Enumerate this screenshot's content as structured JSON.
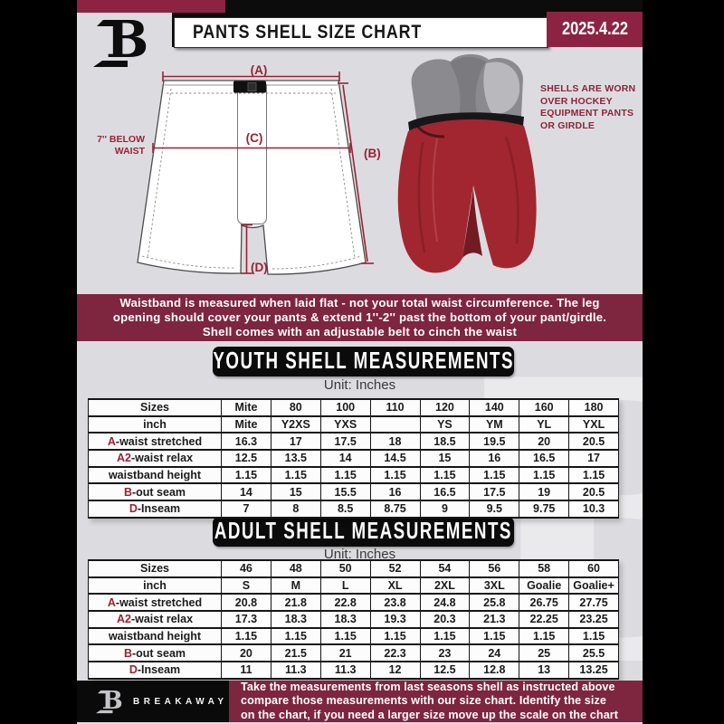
{
  "header": {
    "title": "PANTS SHELL SIZE CHART",
    "date": "2025.4.22"
  },
  "diagram": {
    "label_a": "(A)",
    "label_b": "(B)",
    "label_c": "(C)",
    "label_d": "(D)",
    "below_waist": "7'' BELOW\nWAIST"
  },
  "photo_caption": "SHELLS ARE WORN\nOVER HOCKEY\nEQUIPMENT PANTS\nOR GIRDLE",
  "notice": "Waistband is measured when laid flat - not your total waist circumference. The leg\nopening should cover your pants & extend 1''-2'' past the bottom of your pant/girdle.\nShell comes with an adjustable belt to cinch the waist",
  "youth": {
    "heading": "YOUTH SHELL MEASUREMENTS",
    "unit_label": "Unit: Inches",
    "rows": [
      {
        "prefix": "",
        "label": "Sizes",
        "values": [
          "Mite",
          "80",
          "100",
          "110",
          "120",
          "140",
          "160",
          "180"
        ]
      },
      {
        "prefix": "",
        "label": "inch",
        "values": [
          "Mite",
          "Y2XS",
          "YXS",
          "",
          "YS",
          "YM",
          "YL",
          "YXL"
        ]
      },
      {
        "prefix": "A",
        "label": "-waist stretched",
        "values": [
          "16.3",
          "17",
          "17.5",
          "18",
          "18.5",
          "19.5",
          "20",
          "20.5"
        ]
      },
      {
        "prefix": "A2",
        "label": "-waist relax",
        "values": [
          "12.5",
          "13.5",
          "14",
          "14.5",
          "15",
          "16",
          "16.5",
          "17"
        ]
      },
      {
        "prefix": "",
        "label": "waistband height",
        "values": [
          "1.15",
          "1.15",
          "1.15",
          "1.15",
          "1.15",
          "1.15",
          "1.15",
          "1.15"
        ]
      },
      {
        "prefix": "B",
        "label": "-out seam",
        "values": [
          "14",
          "15",
          "15.5",
          "16",
          "16.5",
          "17.5",
          "19",
          "20.5"
        ]
      },
      {
        "prefix": "D",
        "label": "-Inseam",
        "values": [
          "7",
          "8",
          "8.5",
          "8.75",
          "9",
          "9.5",
          "9.75",
          "10.3"
        ]
      }
    ]
  },
  "adult": {
    "heading": "ADULT SHELL MEASUREMENTS",
    "unit_label": "Unit: Inches",
    "rows": [
      {
        "prefix": "",
        "label": "Sizes",
        "values": [
          "46",
          "48",
          "50",
          "52",
          "54",
          "56",
          "58",
          "60"
        ]
      },
      {
        "prefix": "",
        "label": "inch",
        "values": [
          "S",
          "M",
          "L",
          "XL",
          "2XL",
          "3XL",
          "Goalie",
          "Goalie+"
        ]
      },
      {
        "prefix": "A",
        "label": "-waist stretched",
        "values": [
          "20.8",
          "21.8",
          "22.8",
          "23.8",
          "24.8",
          "25.8",
          "26.75",
          "27.75"
        ]
      },
      {
        "prefix": "A2",
        "label": "-waist relax",
        "values": [
          "17.3",
          "18.3",
          "18.3",
          "19.3",
          "20.3",
          "21.3",
          "22.25",
          "23.25"
        ]
      },
      {
        "prefix": "",
        "label": "waistband height",
        "values": [
          "1.15",
          "1.15",
          "1.15",
          "1.15",
          "1.15",
          "1.15",
          "1.15",
          "1.15"
        ]
      },
      {
        "prefix": "B",
        "label": "-out seam",
        "values": [
          "20",
          "21.5",
          "21",
          "22.3",
          "23",
          "24",
          "25",
          "25.5"
        ]
      },
      {
        "prefix": "D",
        "label": "-Inseam",
        "values": [
          "11",
          "11.3",
          "11.3",
          "12",
          "12.5",
          "12.8",
          "13",
          "13.25"
        ]
      }
    ]
  },
  "footer": {
    "brand": "BREAKAWAY",
    "note": "Take the measurements from last seasons shell as instructed above\ncompare those measurements  with our size chart. Identify the size\non the chart, if you need a larger size move up the scale on the chart",
    "watermark_letter": "B"
  },
  "colors": {
    "maroon_bright": "#8d2342",
    "maroon_deep": "#7e2540",
    "accent": "#9b2136",
    "background": "#dcdce0",
    "shell_red": "#a2262f"
  }
}
